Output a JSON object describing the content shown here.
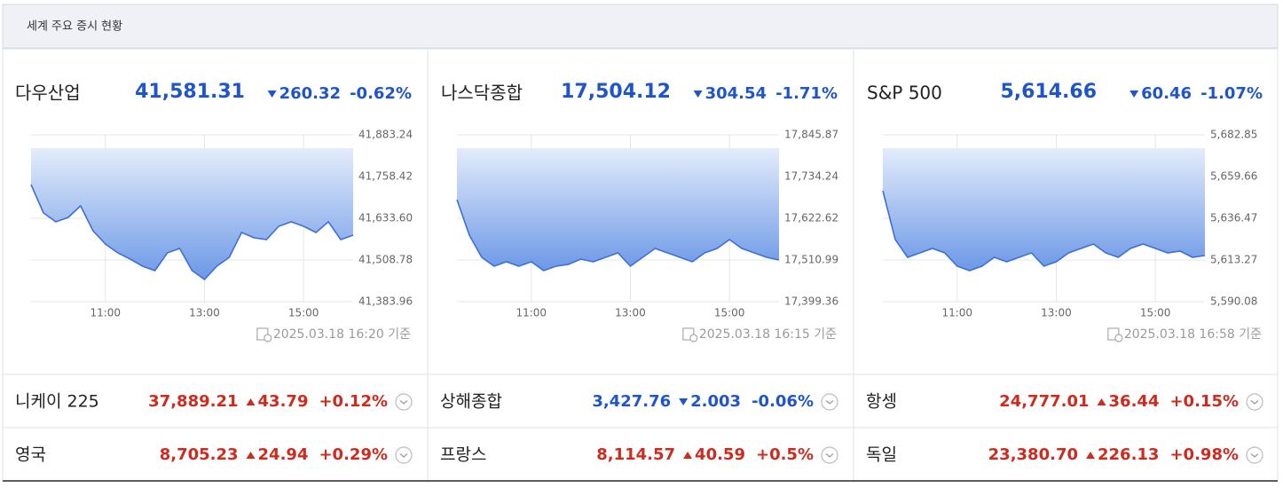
{
  "header": {
    "title": "세계 주요 증시 현황"
  },
  "chart_data": [
    {
      "type": "area",
      "name": "다우산업",
      "price": "41,581.31",
      "change": "260.32",
      "change_pct": "-0.62%",
      "direction": "down",
      "color": "#3d6fd9",
      "timestamp": "2025.03.18 16:20 기준",
      "x": [
        9.5,
        9.75,
        10,
        10.25,
        10.5,
        10.75,
        11,
        11.25,
        11.5,
        11.75,
        12,
        12.25,
        12.5,
        12.75,
        13,
        13.25,
        13.5,
        13.75,
        14,
        14.25,
        14.5,
        14.75,
        15,
        15.25,
        15.5,
        15.75,
        16
      ],
      "values": [
        41734.5,
        41649.5,
        41622.9,
        41636.2,
        41670.7,
        41596.4,
        41556.6,
        41530.0,
        41511.4,
        41490.2,
        41476.9,
        41530.0,
        41543.3,
        41476.9,
        41450.3,
        41490.2,
        41516.7,
        41591.1,
        41575.1,
        41569.8,
        41609.7,
        41622.9,
        41609.7,
        41591.1,
        41622.9,
        41569.8,
        41583.1
      ],
      "xlim": [
        9.5,
        16
      ],
      "xticks": [
        {
          "value": 11,
          "label": "11:00"
        },
        {
          "value": 13,
          "label": "13:00"
        },
        {
          "value": 15,
          "label": "15:00"
        }
      ],
      "ylim": [
        41383.96,
        41883.24
      ],
      "yticks": [
        {
          "value": 41883.24,
          "label": "41,883.24"
        },
        {
          "value": 41758.42,
          "label": "41,758.42"
        },
        {
          "value": 41633.6,
          "label": "41,633.60"
        },
        {
          "value": 41508.78,
          "label": "41,508.78"
        },
        {
          "value": 41383.96,
          "label": "41,383.96"
        }
      ],
      "grid": true
    },
    {
      "type": "area",
      "name": "나스닥종합",
      "price": "17,504.12",
      "change": "304.54",
      "change_pct": "-1.71%",
      "direction": "down",
      "color": "#3d6fd9",
      "timestamp": "2025.03.18 16:15 기준",
      "x": [
        9.5,
        9.75,
        10,
        10.25,
        10.5,
        10.75,
        11,
        11.25,
        11.5,
        11.75,
        12,
        12.25,
        12.5,
        12.75,
        13,
        13.25,
        13.5,
        13.75,
        14,
        14.25,
        14.5,
        14.75,
        15,
        15.25,
        15.5,
        15.75,
        16
      ],
      "values": [
        17672.5,
        17577.5,
        17518.1,
        17494.4,
        17506.3,
        17494.4,
        17506.3,
        17482.5,
        17494.4,
        17499.1,
        17513.4,
        17506.3,
        17518.1,
        17530.0,
        17494.4,
        17518.1,
        17541.9,
        17530.0,
        17518.1,
        17506.3,
        17530.0,
        17541.9,
        17565.6,
        17541.9,
        17530.0,
        17518.1,
        17511.0
      ],
      "xlim": [
        9.5,
        16
      ],
      "xticks": [
        {
          "value": 11,
          "label": "11:00"
        },
        {
          "value": 13,
          "label": "13:00"
        },
        {
          "value": 15,
          "label": "15:00"
        }
      ],
      "ylim": [
        17399.36,
        17845.87
      ],
      "yticks": [
        {
          "value": 17845.87,
          "label": "17,845.87"
        },
        {
          "value": 17734.24,
          "label": "17,734.24"
        },
        {
          "value": 17622.62,
          "label": "17,622.62"
        },
        {
          "value": 17510.99,
          "label": "17,510.99"
        },
        {
          "value": 17399.36,
          "label": "17,399.36"
        }
      ],
      "grid": true
    },
    {
      "type": "area",
      "name": "S&P 500",
      "price": "5,614.66",
      "change": "60.46",
      "change_pct": "-1.07%",
      "direction": "down",
      "color": "#3d6fd9",
      "timestamp": "2025.03.18 16:58 기준",
      "x": [
        9.5,
        9.75,
        10,
        10.25,
        10.5,
        10.75,
        11,
        11.25,
        11.5,
        11.75,
        12,
        12.25,
        12.5,
        12.75,
        13,
        13.25,
        13.5,
        13.75,
        14,
        14.25,
        14.5,
        14.75,
        15,
        15.25,
        15.5,
        15.75,
        16
      ],
      "values": [
        5651.76,
        5624.62,
        5614.75,
        5617.22,
        5619.69,
        5617.22,
        5609.82,
        5607.35,
        5609.82,
        5614.75,
        5612.29,
        5614.75,
        5617.22,
        5609.82,
        5612.29,
        5617.22,
        5619.69,
        5622.15,
        5617.22,
        5614.75,
        5619.69,
        5622.15,
        5619.69,
        5617.22,
        5618.21,
        5614.75,
        5615.74
      ],
      "xlim": [
        9.5,
        16
      ],
      "xticks": [
        {
          "value": 11,
          "label": "11:00"
        },
        {
          "value": 13,
          "label": "13:00"
        },
        {
          "value": 15,
          "label": "15:00"
        }
      ],
      "ylim": [
        5590.08,
        5682.85
      ],
      "yticks": [
        {
          "value": 5682.85,
          "label": "5,682.85"
        },
        {
          "value": 5659.66,
          "label": "5,659.66"
        },
        {
          "value": 5636.47,
          "label": "5,636.47"
        },
        {
          "value": 5613.27,
          "label": "5,613.27"
        },
        {
          "value": 5590.08,
          "label": "5,590.08"
        }
      ],
      "grid": true
    }
  ],
  "table": {
    "rows": [
      [
        {
          "name": "니케이 225",
          "price": "37,889.21",
          "change": "43.79",
          "change_pct": "+0.12%",
          "direction": "up"
        },
        {
          "name": "상해종합",
          "price": "3,427.76",
          "change": "2.003",
          "change_pct": "-0.06%",
          "direction": "down"
        },
        {
          "name": "항셍",
          "price": "24,777.01",
          "change": "36.44",
          "change_pct": "+0.15%",
          "direction": "up"
        }
      ],
      [
        {
          "name": "영국",
          "price": "8,705.23",
          "change": "24.94",
          "change_pct": "+0.29%",
          "direction": "up"
        },
        {
          "name": "프랑스",
          "price": "8,114.57",
          "change": "40.59",
          "change_pct": "+0.5%",
          "direction": "up"
        },
        {
          "name": "독일",
          "price": "23,380.70",
          "change": "226.13",
          "change_pct": "+0.98%",
          "direction": "up"
        }
      ]
    ]
  }
}
